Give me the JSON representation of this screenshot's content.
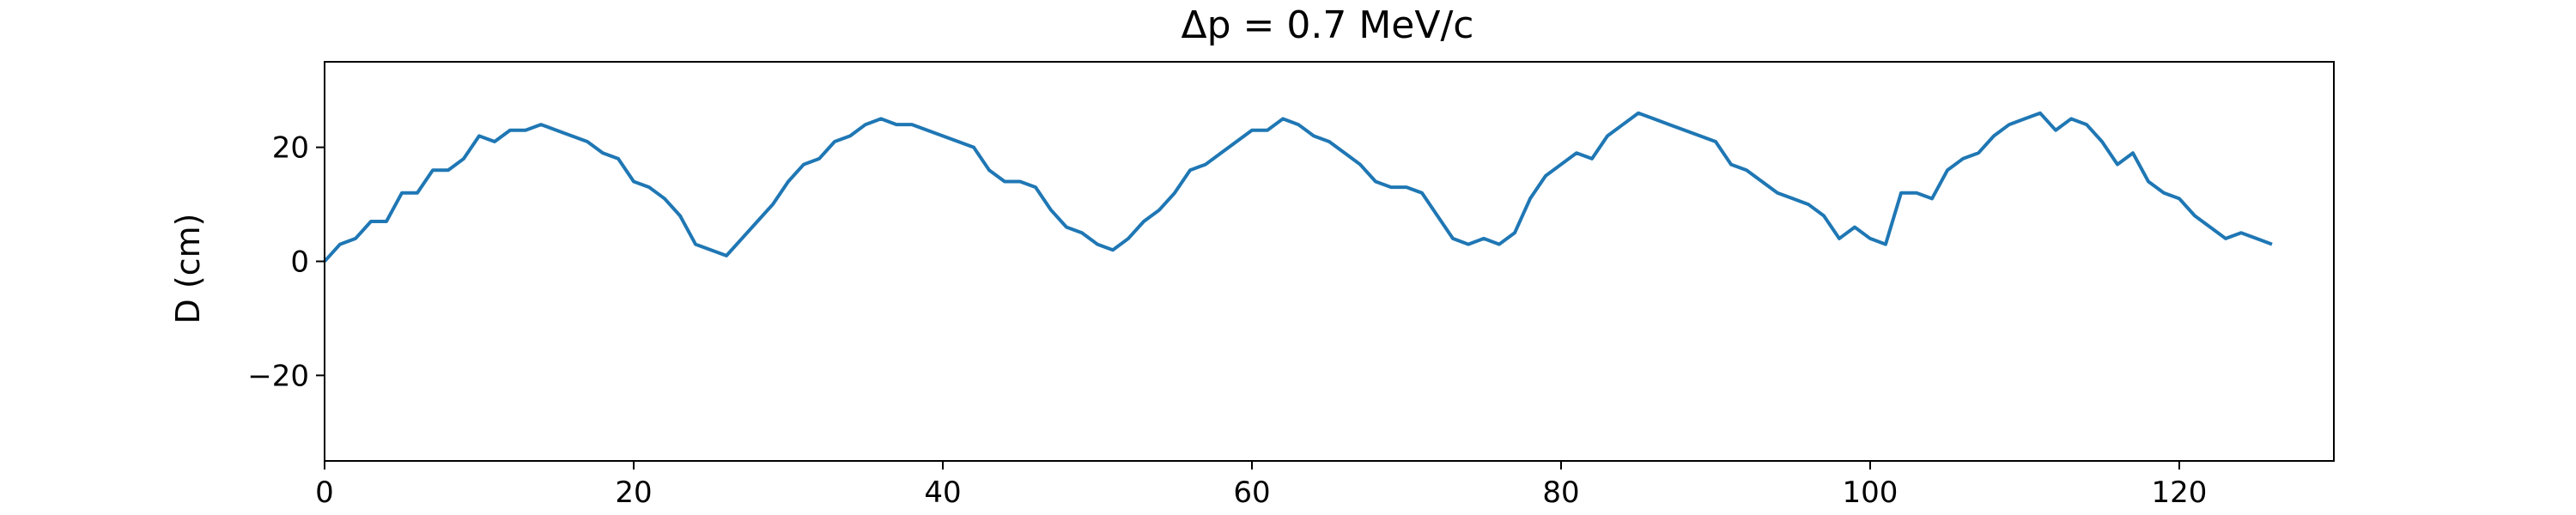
{
  "chart_data": {
    "type": "line",
    "title": "Δp = 0.7 MeV/c",
    "xlabel": "",
    "ylabel": "D (cm)",
    "xlim": [
      0,
      130
    ],
    "ylim": [
      -35,
      35
    ],
    "xticks": [
      0,
      20,
      40,
      60,
      80,
      100,
      120
    ],
    "yticks": [
      -20,
      0,
      20
    ],
    "xtick_labels": [
      "0",
      "20",
      "40",
      "60",
      "80",
      "100",
      "120"
    ],
    "ytick_labels": [
      "−20",
      "0",
      "20"
    ],
    "grid": false,
    "line_color": "#1f77b4",
    "series": [
      {
        "x": [
          0,
          1,
          2,
          3,
          4,
          5,
          6,
          7,
          8,
          9,
          10,
          11,
          12,
          13,
          14,
          15,
          16,
          17,
          18,
          19,
          20,
          21,
          22,
          23,
          24,
          25,
          26,
          27,
          28,
          29,
          30,
          31,
          32,
          33,
          34,
          35,
          36,
          37,
          38,
          39,
          40,
          41,
          42,
          43,
          44,
          45,
          46,
          47,
          48,
          49,
          50,
          51,
          52,
          53,
          54,
          55,
          56,
          57,
          58,
          59,
          60,
          61,
          62,
          63,
          64,
          65,
          66,
          67,
          68,
          69,
          70,
          71,
          72,
          73,
          74,
          75,
          76,
          77,
          78,
          79,
          80,
          81,
          82,
          83,
          84,
          85,
          86,
          87,
          88,
          89,
          90,
          91,
          92,
          93,
          94,
          95,
          96,
          97,
          98,
          99,
          100,
          101,
          102,
          103,
          104,
          105,
          106,
          107,
          108,
          109,
          110,
          111,
          112,
          113,
          114,
          115,
          116,
          117,
          118,
          119,
          120,
          121,
          122,
          123,
          124,
          125,
          126
        ],
        "values": [
          0,
          3,
          4,
          7,
          7,
          12,
          12,
          16,
          16,
          18,
          22,
          21,
          23,
          23,
          24,
          23,
          22,
          21,
          19,
          18,
          14,
          13,
          11,
          8,
          3,
          2,
          1,
          4,
          7,
          10,
          14,
          17,
          18,
          21,
          22,
          24,
          25,
          24,
          24,
          23,
          22,
          21,
          20,
          16,
          14,
          14,
          13,
          9,
          6,
          5,
          3,
          2,
          4,
          7,
          9,
          12,
          16,
          17,
          19,
          21,
          23,
          23,
          25,
          24,
          22,
          21,
          19,
          17,
          14,
          13,
          13,
          12,
          8,
          4,
          3,
          4,
          3,
          5,
          11,
          15,
          17,
          19,
          18,
          22,
          24,
          26,
          25,
          24,
          23,
          22,
          21,
          17,
          16,
          14,
          12,
          11,
          10,
          8,
          4,
          6,
          4,
          3,
          12,
          12,
          11,
          16,
          18,
          19,
          22,
          24,
          25,
          26,
          23,
          25,
          24,
          21,
          17,
          19,
          14,
          12,
          11,
          8,
          6,
          4,
          5,
          4,
          3
        ]
      }
    ]
  }
}
